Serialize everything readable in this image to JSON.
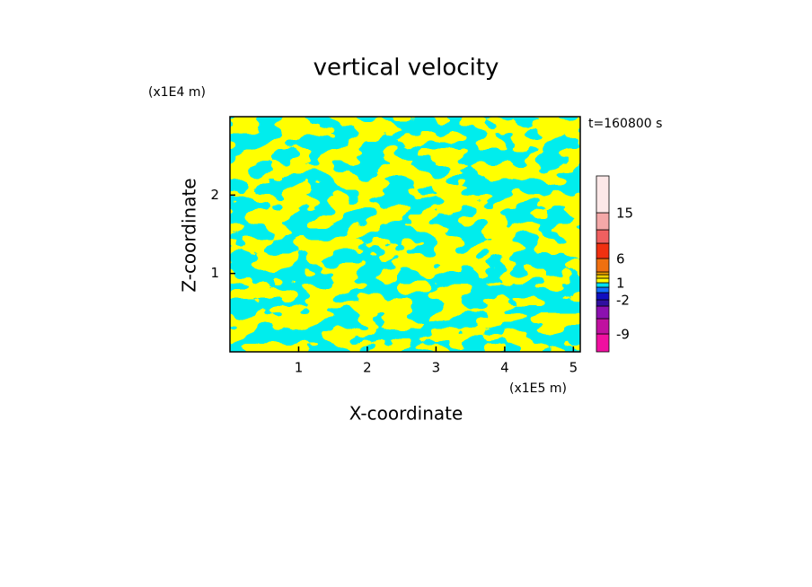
{
  "chart_data": {
    "type": "contour",
    "title": "vertical velocity",
    "x_label": "X-coordinate",
    "y_label": "Z-coordinate",
    "x_unit": "(x1E5 m)",
    "y_unit": "(x1E4 m)",
    "annotation": "t=160800 s",
    "xlim": [
      0,
      5.1
    ],
    "xticks": [
      1,
      2,
      3,
      4,
      5
    ],
    "ylim": [
      0,
      3
    ],
    "yticks": [
      1,
      2
    ],
    "colorbar": {
      "colors": [
        "#f010a0",
        "#c010a0",
        "#8c10b0",
        "#3010a0",
        "#1010c0",
        "#1070ff",
        "#00e0f0",
        "#ffff00",
        "#f0d000",
        "#f0a000",
        "#f07010",
        "#f03010",
        "#f06060",
        "#f4a8a8",
        "#fde8e8"
      ],
      "ticks": [
        -9,
        -2,
        1,
        6,
        15
      ]
    }
  }
}
